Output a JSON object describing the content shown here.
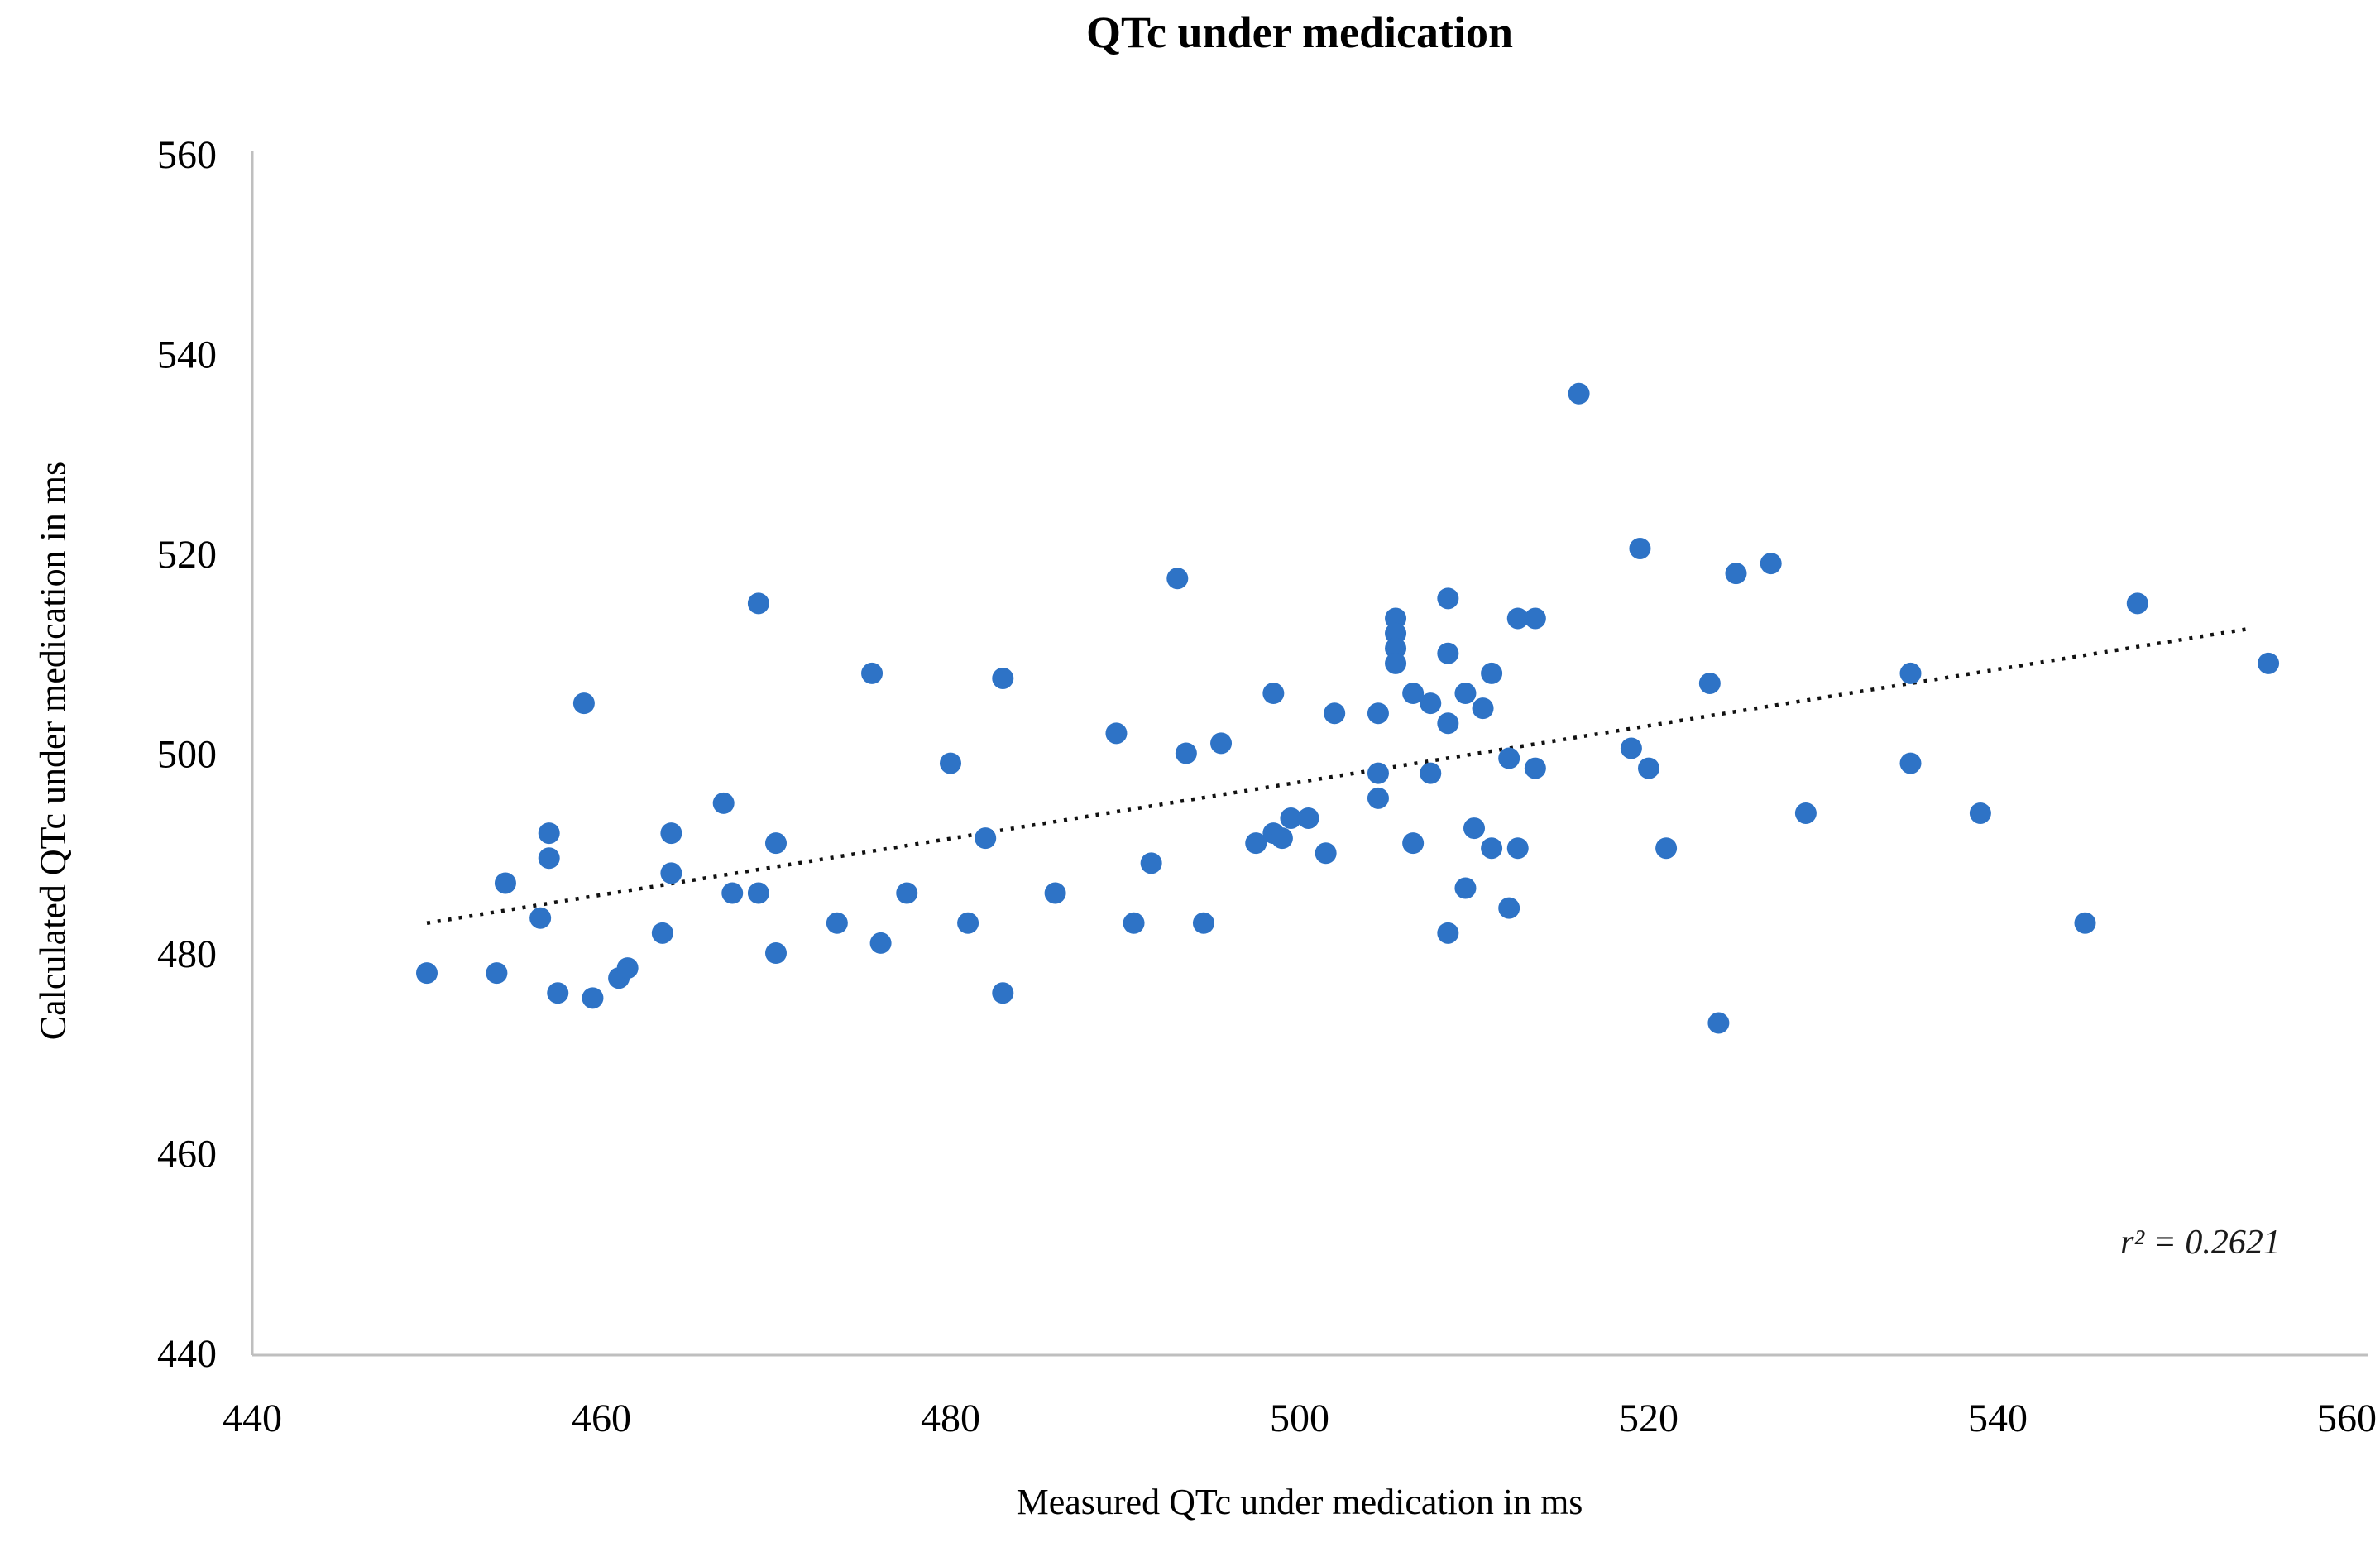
{
  "chart_data": {
    "type": "scatter",
    "title": "QTc under medication",
    "xlabel": "Measured QTc under medication in ms",
    "ylabel": "Calculated QTc under medication in ms",
    "xlim": [
      440,
      560
    ],
    "ylim": [
      440,
      560
    ],
    "xticks": [
      440,
      460,
      480,
      500,
      520,
      540,
      560
    ],
    "yticks": [
      440,
      460,
      480,
      500,
      520,
      540,
      560
    ],
    "grid": false,
    "legend": "none",
    "annotation": "r² = 0.2621",
    "r_squared": 0.2621,
    "marker_color": "#2E73C6",
    "axis_color": "#BFBFBF",
    "trendline": {
      "style": "dotted",
      "color": "#111111",
      "x1": 450,
      "y1": 483,
      "x2": 554.5,
      "y2": 512.5
    },
    "points": [
      [
        450,
        478
      ],
      [
        454,
        478
      ],
      [
        454.5,
        487
      ],
      [
        456.5,
        483.5
      ],
      [
        457,
        492
      ],
      [
        457,
        489.5
      ],
      [
        457.5,
        476
      ],
      [
        459.5,
        475.5
      ],
      [
        461,
        477.5
      ],
      [
        461.5,
        478.5
      ],
      [
        459,
        505
      ],
      [
        463.5,
        482
      ],
      [
        464,
        492
      ],
      [
        464,
        488
      ],
      [
        467,
        495
      ],
      [
        467.5,
        486
      ],
      [
        469,
        486
      ],
      [
        469,
        515
      ],
      [
        470,
        491
      ],
      [
        470,
        480
      ],
      [
        473.5,
        483
      ],
      [
        475.5,
        508
      ],
      [
        476,
        481
      ],
      [
        477.5,
        486
      ],
      [
        480,
        499
      ],
      [
        481,
        483
      ],
      [
        483,
        476
      ],
      [
        482,
        491.5
      ],
      [
        486,
        486
      ],
      [
        483,
        507.5
      ],
      [
        489.5,
        502
      ],
      [
        490.5,
        483
      ],
      [
        491.5,
        489
      ],
      [
        493.5,
        500
      ],
      [
        494.5,
        483
      ],
      [
        495.5,
        501
      ],
      [
        497.5,
        491
      ],
      [
        498.5,
        492
      ],
      [
        499,
        491.5
      ],
      [
        499.5,
        493.5
      ],
      [
        500.5,
        493.5
      ],
      [
        501.5,
        490
      ],
      [
        502,
        504
      ],
      [
        498.5,
        506
      ],
      [
        493,
        517.5
      ],
      [
        504.5,
        504
      ],
      [
        505.5,
        513.5
      ],
      [
        505.5,
        512
      ],
      [
        505.5,
        510.5
      ],
      [
        505.5,
        509
      ],
      [
        506.5,
        506
      ],
      [
        507.5,
        505
      ],
      [
        508.5,
        510
      ],
      [
        508.5,
        515.5
      ],
      [
        509.5,
        506
      ],
      [
        510.5,
        504.5
      ],
      [
        508.5,
        503
      ],
      [
        511,
        508
      ],
      [
        512.5,
        513.5
      ],
      [
        513.5,
        513.5
      ],
      [
        504.5,
        498
      ],
      [
        504.5,
        495.5
      ],
      [
        507.5,
        498
      ],
      [
        512,
        499.5
      ],
      [
        513.5,
        498.5
      ],
      [
        519,
        500.5
      ],
      [
        520,
        498.5
      ],
      [
        506.5,
        491
      ],
      [
        510,
        492.5
      ],
      [
        511,
        490.5
      ],
      [
        512.5,
        490.5
      ],
      [
        521,
        490.5
      ],
      [
        509.5,
        486.5
      ],
      [
        512,
        484.5
      ],
      [
        508.5,
        482
      ],
      [
        516,
        536
      ],
      [
        519.5,
        520.5
      ],
      [
        525,
        518
      ],
      [
        527,
        519
      ],
      [
        523.5,
        507
      ],
      [
        535,
        508
      ],
      [
        535,
        499
      ],
      [
        529,
        494
      ],
      [
        539,
        494
      ],
      [
        524,
        473
      ],
      [
        545,
        483
      ],
      [
        548,
        515
      ],
      [
        555.5,
        509
      ]
    ]
  }
}
